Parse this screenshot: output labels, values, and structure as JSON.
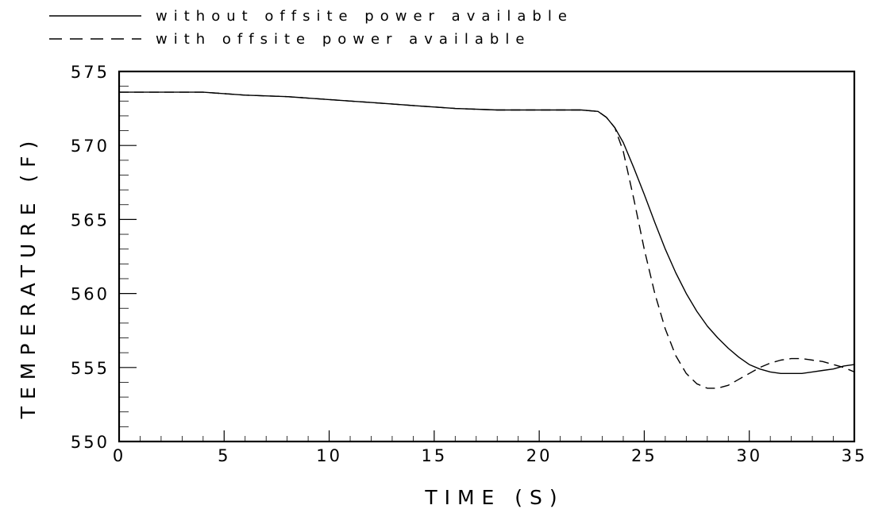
{
  "chart_data": {
    "type": "line",
    "xlabel": "TIME  (S)",
    "ylabel": "TEMPERATURE  (F)",
    "xlim": [
      0,
      35
    ],
    "ylim": [
      550,
      575
    ],
    "x_ticks": [
      0,
      5,
      10,
      15,
      20,
      25,
      30,
      35
    ],
    "y_ticks": [
      550,
      555,
      560,
      565,
      570,
      575
    ],
    "grid": false,
    "legend_position": "top-left, above plot",
    "series": [
      {
        "name": "without offsite power available",
        "style": "solid",
        "color": "#000000",
        "points": [
          [
            0,
            573.6
          ],
          [
            2,
            573.6
          ],
          [
            4,
            573.6
          ],
          [
            6,
            573.4
          ],
          [
            8,
            573.3
          ],
          [
            10,
            573.1
          ],
          [
            12,
            572.9
          ],
          [
            14,
            572.7
          ],
          [
            16,
            572.5
          ],
          [
            18,
            572.4
          ],
          [
            20,
            572.4
          ],
          [
            22,
            572.4
          ],
          [
            22.8,
            572.3
          ],
          [
            23.2,
            571.9
          ],
          [
            23.6,
            571.2
          ],
          [
            24,
            570.2
          ],
          [
            24.5,
            568.5
          ],
          [
            25,
            566.7
          ],
          [
            25.5,
            564.8
          ],
          [
            26,
            563.0
          ],
          [
            26.5,
            561.4
          ],
          [
            27,
            560.0
          ],
          [
            27.5,
            558.8
          ],
          [
            28,
            557.8
          ],
          [
            28.5,
            557.0
          ],
          [
            29,
            556.3
          ],
          [
            29.5,
            555.7
          ],
          [
            30,
            555.2
          ],
          [
            30.5,
            554.9
          ],
          [
            31,
            554.7
          ],
          [
            31.5,
            554.6
          ],
          [
            32,
            554.6
          ],
          [
            32.5,
            554.6
          ],
          [
            33,
            554.7
          ],
          [
            33.5,
            554.8
          ],
          [
            34,
            554.9
          ],
          [
            34.5,
            555.1
          ],
          [
            35,
            555.2
          ]
        ]
      },
      {
        "name": "with offsite power available",
        "style": "dashed",
        "color": "#000000",
        "points": [
          [
            0,
            573.6
          ],
          [
            2,
            573.6
          ],
          [
            4,
            573.6
          ],
          [
            6,
            573.4
          ],
          [
            8,
            573.3
          ],
          [
            10,
            573.1
          ],
          [
            12,
            572.9
          ],
          [
            14,
            572.7
          ],
          [
            16,
            572.5
          ],
          [
            18,
            572.4
          ],
          [
            20,
            572.4
          ],
          [
            22,
            572.4
          ],
          [
            22.8,
            572.3
          ],
          [
            23.2,
            571.9
          ],
          [
            23.6,
            571.2
          ],
          [
            24,
            569.6
          ],
          [
            24.5,
            566.4
          ],
          [
            25,
            563.0
          ],
          [
            25.5,
            560.0
          ],
          [
            26,
            557.6
          ],
          [
            26.5,
            555.8
          ],
          [
            27,
            554.6
          ],
          [
            27.5,
            553.9
          ],
          [
            28,
            553.6
          ],
          [
            28.5,
            553.6
          ],
          [
            29,
            553.8
          ],
          [
            29.5,
            554.2
          ],
          [
            30,
            554.6
          ],
          [
            30.5,
            555.0
          ],
          [
            31,
            555.3
          ],
          [
            31.5,
            555.5
          ],
          [
            32,
            555.6
          ],
          [
            32.5,
            555.6
          ],
          [
            33,
            555.5
          ],
          [
            33.5,
            555.4
          ],
          [
            34,
            555.2
          ],
          [
            34.5,
            555.0
          ],
          [
            35,
            554.7
          ]
        ]
      }
    ]
  }
}
